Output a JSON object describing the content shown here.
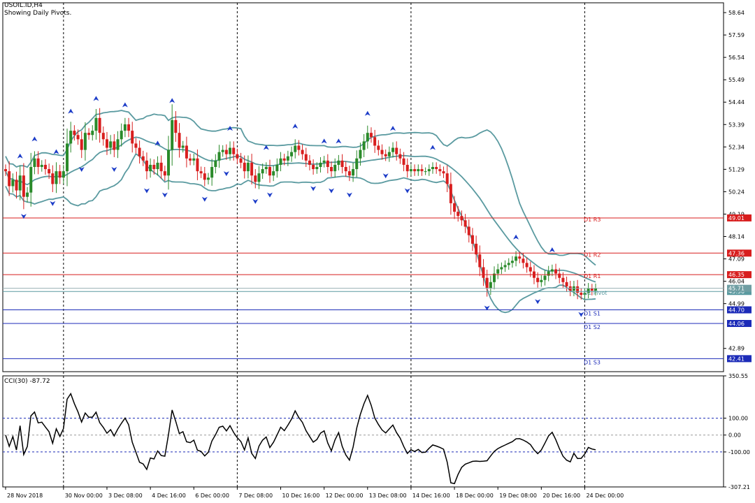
{
  "header": {
    "symbol_line": "USOIL.ID,H4",
    "pivot_line": "Showing Daily Pivots."
  },
  "indicator": {
    "label": "CCI(30) -87.72"
  },
  "colors": {
    "bull": "#2a8a2a",
    "bear": "#d81e1e",
    "band": "#5a9aa0",
    "resistance": "#d81e1e",
    "support": "#1c2bb8",
    "cci_line": "#000000",
    "fractal": "#1c3cc8"
  },
  "chart_data": [
    {
      "type": "candlestick",
      "ylim": [
        41.8,
        59.1
      ],
      "y_ticks": [
        "58.64",
        "57.59",
        "56.54",
        "55.49",
        "54.44",
        "53.39",
        "52.34",
        "51.29",
        "50.24",
        "49.19",
        "48.14",
        "47.09",
        "46.04",
        "44.99",
        "42.89"
      ],
      "x_ticks": [
        "28 Nov 2018",
        "30 Nov 00:00",
        "3 Dec 08:00",
        "4 Dec 16:00",
        "6 Dec 00:00",
        "7 Dec 08:00",
        "10 Dec 16:00",
        "12 Dec 00:00",
        "13 Dec 08:00",
        "14 Dec 16:00",
        "18 Dec 00:00",
        "19 Dec 08:00",
        "20 Dec 16:00",
        "24 Dec 00:00"
      ],
      "x_tick_candle": [
        0,
        16,
        28,
        40,
        52,
        64,
        76,
        88,
        100,
        112,
        124,
        136,
        148,
        160
      ],
      "day_separators": [
        16,
        64,
        112,
        160
      ],
      "pivot_levels": [
        {
          "name": "D1 R3",
          "value": 49.01,
          "label": "49.01",
          "kind": "resistance"
        },
        {
          "name": "D1 R2",
          "value": 47.36,
          "label": "47.36",
          "kind": "resistance"
        },
        {
          "name": "D1 R1",
          "value": 46.35,
          "label": "46.35",
          "kind": "resistance"
        },
        {
          "name": "D1 Pivot",
          "value": 45.56,
          "label": "45.56",
          "kind": "pivot"
        },
        {
          "name": "D1 S1",
          "value": 44.7,
          "label": "44.70",
          "kind": "support"
        },
        {
          "name": "D1 S2",
          "value": 44.06,
          "label": "44.06",
          "kind": "support"
        },
        {
          "name": "D1 S3",
          "value": 42.41,
          "label": "42.41",
          "kind": "support"
        }
      ],
      "current_price": {
        "value": 45.71,
        "label": "45.71"
      },
      "closes": [
        51.2,
        50.5,
        50.8,
        50.3,
        51.0,
        50.0,
        50.2,
        51.4,
        51.8,
        51.4,
        51.5,
        51.3,
        51.1,
        50.6,
        51.2,
        50.9,
        51.2,
        52.5,
        53.1,
        52.9,
        52.7,
        52.2,
        53.0,
        52.9,
        53.1,
        53.7,
        53.0,
        52.7,
        52.3,
        52.6,
        52.2,
        52.7,
        53.1,
        53.4,
        53.1,
        52.5,
        52.3,
        51.9,
        51.7,
        51.2,
        51.5,
        51.3,
        51.6,
        51.2,
        51.0,
        52.2,
        53.6,
        53.0,
        52.3,
        52.4,
        51.8,
        51.7,
        51.8,
        51.2,
        51.1,
        50.8,
        50.9,
        51.4,
        51.7,
        52.1,
        52.2,
        52.0,
        52.3,
        52.0,
        51.8,
        51.6,
        51.2,
        51.6,
        51.0,
        50.7,
        51.1,
        51.3,
        51.4,
        51.0,
        51.2,
        51.5,
        51.8,
        51.7,
        51.9,
        52.1,
        52.4,
        52.2,
        52.0,
        51.7,
        51.5,
        51.3,
        51.4,
        51.6,
        51.7,
        51.4,
        51.2,
        51.5,
        51.7,
        51.4,
        51.2,
        51.0,
        51.3,
        51.8,
        52.2,
        52.6,
        53.0,
        52.8,
        52.4,
        52.2,
        52.0,
        51.9,
        52.1,
        52.3,
        52.0,
        51.8,
        51.5,
        51.2,
        51.3,
        51.2,
        51.3,
        51.2,
        51.2,
        51.3,
        51.4,
        51.3,
        51.2,
        51.1,
        50.6,
        49.7,
        49.3,
        49.1,
        48.9,
        48.6,
        48.2,
        47.8,
        47.3,
        46.7,
        46.2,
        45.7,
        46.0,
        46.4,
        46.6,
        46.7,
        46.8,
        46.9,
        47.0,
        47.2,
        47.1,
        46.9,
        46.7,
        46.5,
        46.2,
        46.0,
        46.1,
        46.3,
        46.5,
        46.6,
        46.4,
        46.2,
        46.0,
        45.8,
        45.6,
        45.8,
        45.5,
        45.4,
        45.5,
        45.7,
        45.6,
        45.71
      ],
      "cci_ylim": [
        -307.21,
        350.55
      ],
      "cci_ticks": [
        "350.55",
        "100.00",
        "0.00",
        "-100.00",
        "-307.21"
      ],
      "cci_levels": [
        100,
        0,
        -100
      ],
      "cci_current": -87.72
    }
  ]
}
